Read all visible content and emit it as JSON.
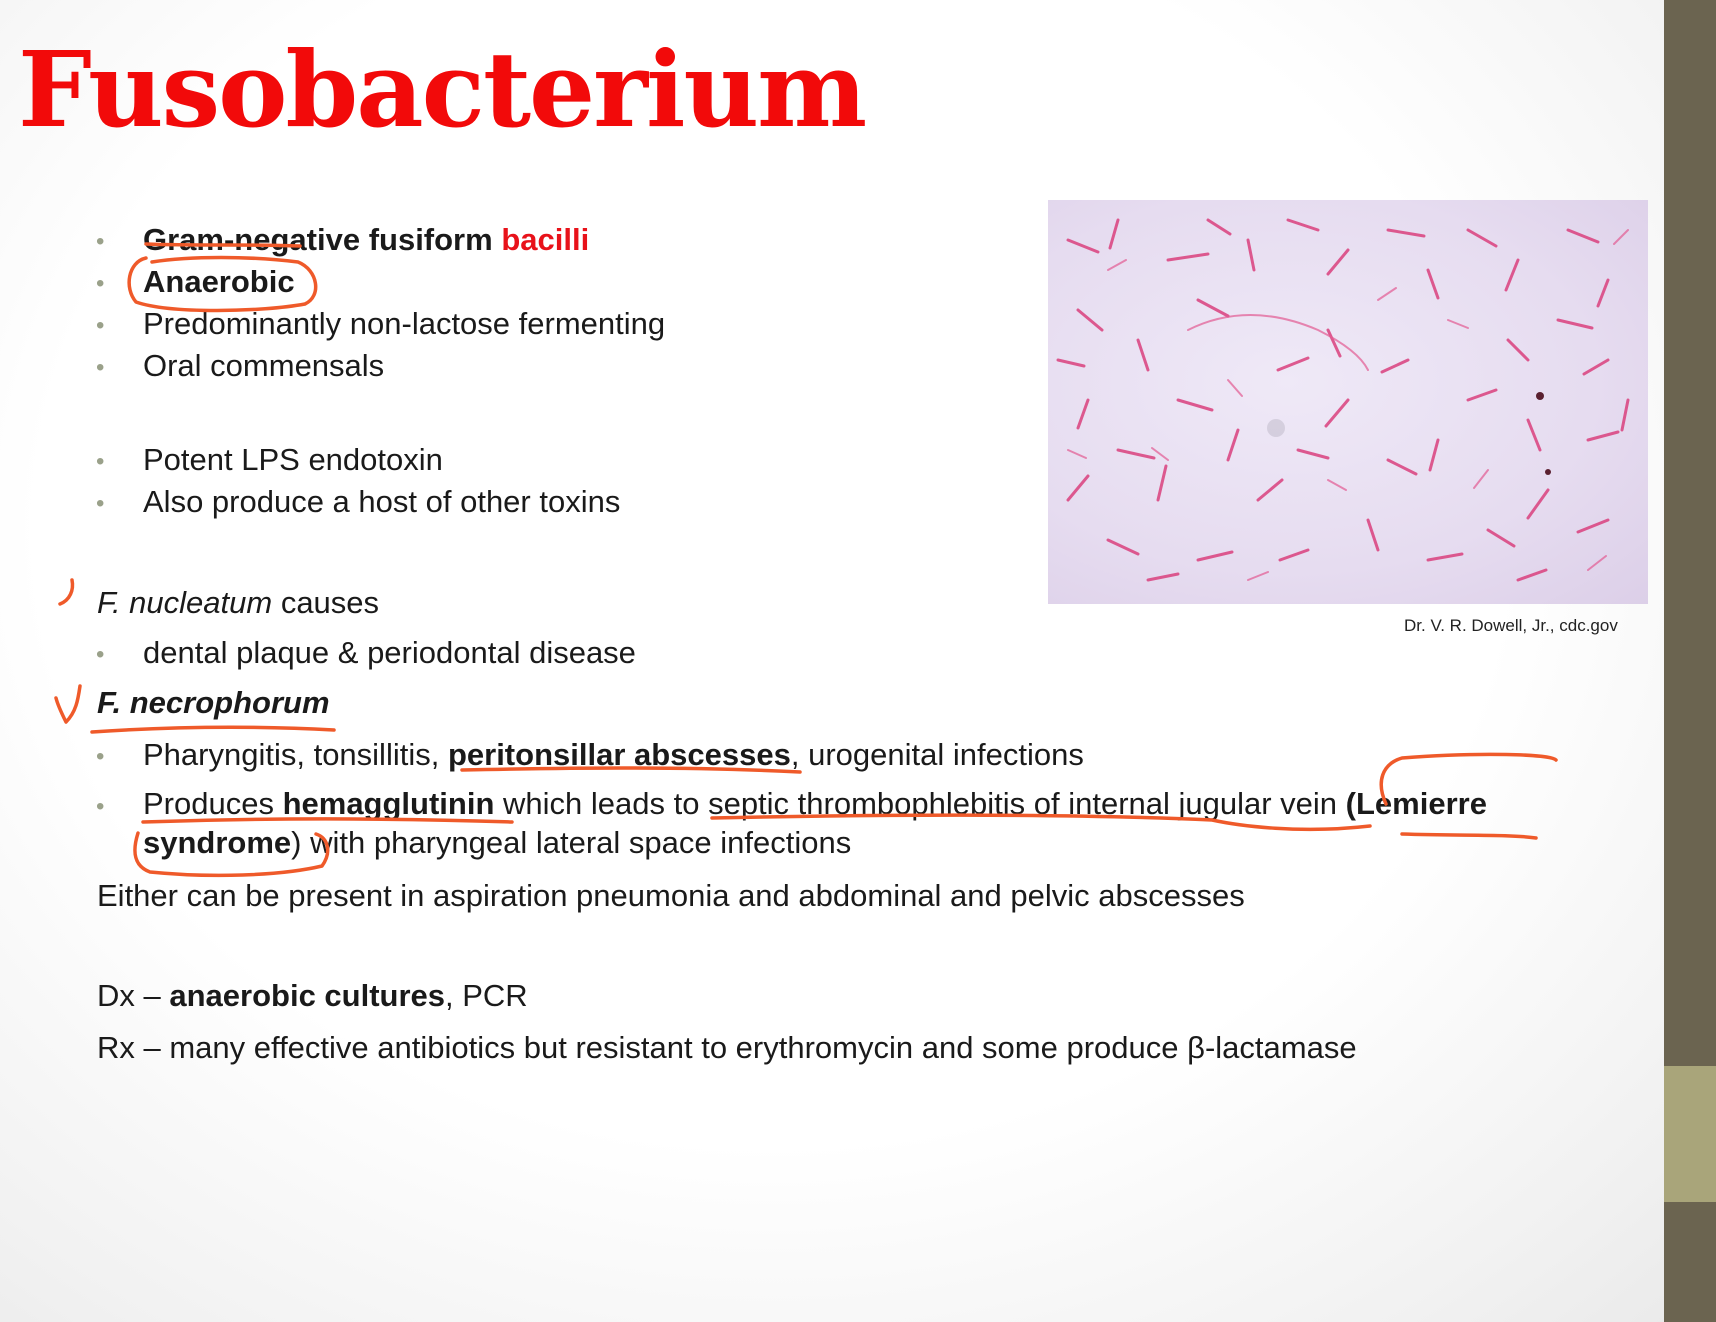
{
  "title": "Fusobacterium",
  "bullets_group1": [
    {
      "bold": "Gram-negative fusiform ",
      "red": "bacilli"
    },
    {
      "bold": "Anaerobic"
    },
    {
      "text": "Predominantly non-lactose fermenting"
    },
    {
      "text": "Oral commensals"
    }
  ],
  "bullets_group2": [
    {
      "text": "Potent LPS endotoxin"
    },
    {
      "text": "Also produce a host of other toxins"
    }
  ],
  "nucleatum": {
    "name": "F. nucleatum",
    "suffix": " causes",
    "bullet": "dental plaque & periodontal disease"
  },
  "necrophorum": {
    "name": "F. necrophorum",
    "bullet1": {
      "pre": "Pharyngitis, tonsillitis, ",
      "bold": "peritonsillar abscesses",
      "post": ", urogenital infections"
    },
    "bullet2": {
      "pre": "Produces ",
      "bold1": "hemagglutinin",
      "mid": " which leads to septic thrombophlebitis of internal jugular vein ",
      "bold2": "(Lemierre syndrome",
      "post": ") with pharyngeal lateral space infections"
    }
  },
  "either_line": "Either can be present in aspiration pneumonia and abdominal and pelvic abscesses",
  "dx": {
    "pre": "Dx – ",
    "bold": "anaerobic cultures",
    "post": ", PCR"
  },
  "rx": "Rx – many effective antibiotics but resistant to erythromycin and some produce β-lactamase",
  "image_caption": "Dr. V. R. Dowell, Jr., cdc.gov",
  "colors": {
    "title": "#f20a0a",
    "annotation": "#ef5a2a",
    "sidebar": "#6b6450",
    "sidebar_accent": "#a9a57a"
  }
}
